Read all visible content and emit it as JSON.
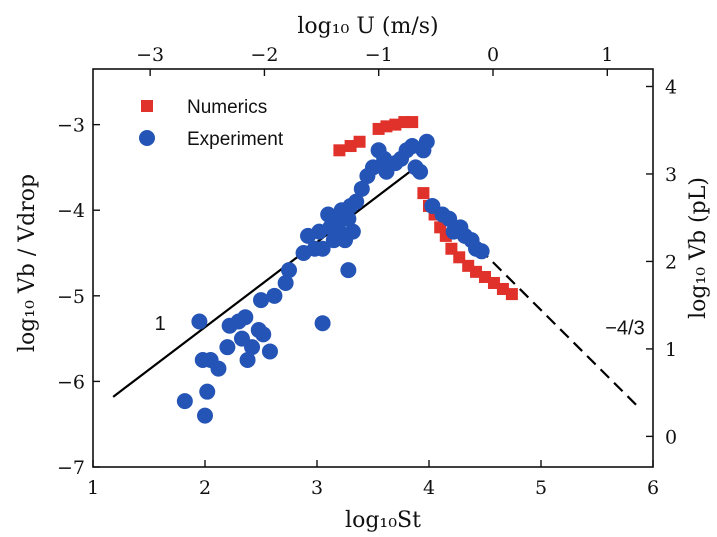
{
  "chart_data": {
    "type": "scatter",
    "xlabel": "log₁₀St",
    "ylabel": "log₁₀ Vb / Vdrop",
    "top_xlabel": "log₁₀ U (m/s)",
    "right_ylabel": "log₁₀ Vb (pL)",
    "xlim": [
      1,
      6
    ],
    "ylim": [
      -7,
      -2.35
    ],
    "xticks": [
      "1",
      "2",
      "3",
      "4",
      "5",
      "6"
    ],
    "yticks": [
      "−7",
      "−6",
      "−5",
      "−4",
      "−3"
    ],
    "top_xlim": [
      -3.5,
      1.4
    ],
    "top_xticks": [
      "−3",
      "−2",
      "−1",
      "0",
      "1"
    ],
    "right_ylim": [
      -0.35,
      4.2
    ],
    "right_yticks": [
      "0",
      "1",
      "2",
      "3",
      "4"
    ],
    "grid": false,
    "legend_position": "top-left",
    "series": [
      {
        "name": "Numerics",
        "marker": "square",
        "color": "#e0312b",
        "points": [
          [
            3.2,
            -3.3
          ],
          [
            3.3,
            -3.25
          ],
          [
            3.38,
            -3.2
          ],
          [
            3.55,
            -3.05
          ],
          [
            3.62,
            -3.02
          ],
          [
            3.7,
            -3.0
          ],
          [
            3.78,
            -2.97
          ],
          [
            3.85,
            -2.97
          ],
          [
            3.95,
            -3.8
          ],
          [
            4.0,
            -3.95
          ],
          [
            4.05,
            -4.05
          ],
          [
            4.1,
            -4.2
          ],
          [
            4.15,
            -4.3
          ],
          [
            4.2,
            -4.45
          ],
          [
            4.27,
            -4.55
          ],
          [
            4.35,
            -4.65
          ],
          [
            4.42,
            -4.72
          ],
          [
            4.5,
            -4.78
          ],
          [
            4.58,
            -4.85
          ],
          [
            4.66,
            -4.92
          ],
          [
            4.74,
            -4.98
          ]
        ]
      },
      {
        "name": "Experiment",
        "marker": "circle",
        "color": "#2454b5",
        "points": [
          [
            1.82,
            -6.23
          ],
          [
            1.95,
            -5.3
          ],
          [
            1.98,
            -5.75
          ],
          [
            2.0,
            -6.4
          ],
          [
            2.02,
            -6.12
          ],
          [
            2.05,
            -5.75
          ],
          [
            2.12,
            -5.85
          ],
          [
            2.2,
            -5.6
          ],
          [
            2.22,
            -5.35
          ],
          [
            2.3,
            -5.3
          ],
          [
            2.33,
            -5.5
          ],
          [
            2.36,
            -5.25
          ],
          [
            2.38,
            -5.75
          ],
          [
            2.42,
            -5.6
          ],
          [
            2.48,
            -5.4
          ],
          [
            2.5,
            -5.05
          ],
          [
            2.52,
            -5.45
          ],
          [
            2.58,
            -5.65
          ],
          [
            2.62,
            -5.0
          ],
          [
            2.72,
            -4.85
          ],
          [
            2.75,
            -4.7
          ],
          [
            2.88,
            -4.5
          ],
          [
            2.92,
            -4.3
          ],
          [
            2.98,
            -4.45
          ],
          [
            3.02,
            -4.25
          ],
          [
            3.05,
            -4.45
          ],
          [
            3.05,
            -5.32
          ],
          [
            3.1,
            -4.05
          ],
          [
            3.12,
            -4.2
          ],
          [
            3.15,
            -4.35
          ],
          [
            3.18,
            -4.1
          ],
          [
            3.2,
            -4.25
          ],
          [
            3.22,
            -4.0
          ],
          [
            3.25,
            -4.35
          ],
          [
            3.28,
            -4.1
          ],
          [
            3.28,
            -4.7
          ],
          [
            3.3,
            -3.95
          ],
          [
            3.32,
            -4.25
          ],
          [
            3.35,
            -3.9
          ],
          [
            3.4,
            -3.75
          ],
          [
            3.45,
            -3.6
          ],
          [
            3.5,
            -3.5
          ],
          [
            3.55,
            -3.3
          ],
          [
            3.6,
            -3.4
          ],
          [
            3.62,
            -3.55
          ],
          [
            3.7,
            -3.45
          ],
          [
            3.75,
            -3.4
          ],
          [
            3.8,
            -3.3
          ],
          [
            3.85,
            -3.25
          ],
          [
            3.88,
            -3.5
          ],
          [
            3.92,
            -3.55
          ],
          [
            3.95,
            -3.3
          ],
          [
            3.98,
            -3.2
          ],
          [
            4.03,
            -3.95
          ],
          [
            4.12,
            -4.05
          ],
          [
            4.18,
            -4.1
          ],
          [
            4.22,
            -4.25
          ],
          [
            4.28,
            -4.2
          ],
          [
            4.32,
            -4.3
          ],
          [
            4.38,
            -4.35
          ],
          [
            4.42,
            -4.45
          ],
          [
            4.47,
            -4.48
          ]
        ]
      }
    ],
    "fit_lines": [
      {
        "style": "solid",
        "points": [
          [
            1.18,
            -6.18
          ],
          [
            3.93,
            -3.45
          ]
        ]
      },
      {
        "style": "dashed",
        "points": [
          [
            4.45,
            -4.45
          ],
          [
            5.87,
            -6.3
          ]
        ]
      }
    ],
    "annotations": [
      {
        "text": "1",
        "x": 1.6,
        "y": -5.4
      },
      {
        "text": "−4/3",
        "x": 5.75,
        "y": -5.45
      }
    ]
  }
}
